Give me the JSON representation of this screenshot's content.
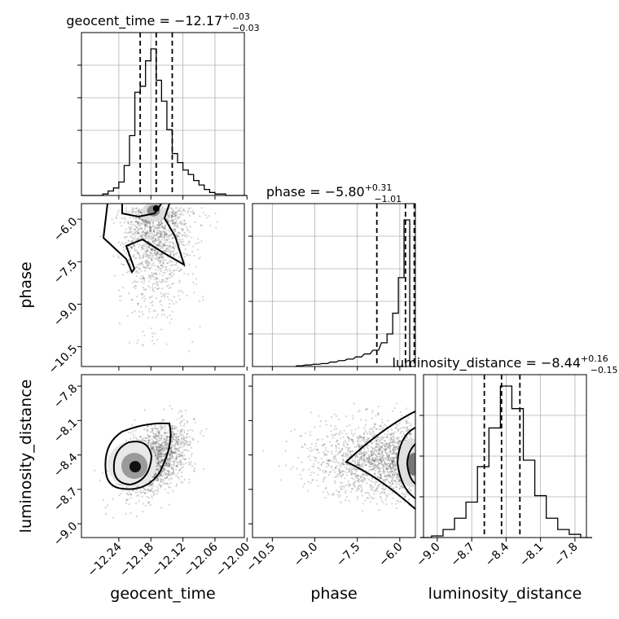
{
  "chart_data": [
    {
      "type": "histogram",
      "panel": "geocent_time marginal",
      "title": {
        "main": "geocent_time = −12.17",
        "sup": "+0.03",
        "sub": "−0.03"
      },
      "x": [
        -12.305,
        -12.295,
        -12.285,
        -12.275,
        -12.265,
        -12.255,
        -12.245,
        -12.235,
        -12.225,
        -12.215,
        -12.205,
        -12.195,
        -12.185,
        -12.175,
        -12.165,
        -12.155,
        -12.145,
        -12.135,
        -12.125,
        -12.115,
        -12.105,
        -12.095,
        -12.085,
        -12.075,
        -12.065,
        -12.055,
        -12.045,
        -12.035,
        -12.025,
        -12.015,
        -12.005
      ],
      "values": [
        0,
        0,
        0,
        0,
        0.01,
        0.03,
        0.05,
        0.09,
        0.2,
        0.4,
        0.69,
        0.73,
        0.9,
        0.98,
        0.77,
        0.63,
        0.44,
        0.28,
        0.22,
        0.17,
        0.14,
        0.1,
        0.07,
        0.04,
        0.02,
        0.01,
        0.01,
        0,
        0,
        0,
        0
      ],
      "quantiles": [
        -12.2,
        -12.17,
        -12.14
      ],
      "xlim": [
        -12.31,
        -12.0
      ],
      "grid": true
    },
    {
      "type": "histogram",
      "panel": "phase marginal",
      "title": {
        "main": "phase = −5.80",
        "sup": "+0.31",
        "sub": "−1.01"
      },
      "x": [
        -11.45,
        -11.35,
        -11.25,
        -11.15,
        -11.05,
        -10.95,
        -10.85,
        -10.75,
        -10.65,
        -10.55,
        -10.45,
        -10.35,
        -10.25,
        -10.15,
        -10.05,
        -9.95,
        -9.85,
        -9.75,
        -9.65,
        -9.55,
        -9.45,
        -9.35,
        -9.25,
        -9.15,
        -9.05,
        -8.95,
        -8.85,
        -8.75,
        -8.65,
        -8.55,
        -8.45,
        -8.35,
        -8.25,
        -8.15,
        -8.05,
        -7.95,
        -7.85,
        -7.75,
        -7.65,
        -7.55,
        -7.45,
        -7.35,
        -7.25,
        -7.15,
        -7.05,
        -6.95,
        -6.85,
        -6.75,
        -6.65,
        -6.55,
        -6.45,
        -6.35,
        -6.25,
        -6.15,
        -6.05,
        -5.95,
        -5.85,
        -5.75,
        -5.65,
        -5.55
      ],
      "values": [
        0,
        0,
        0,
        0,
        0,
        0,
        0,
        0,
        0,
        0,
        0,
        0,
        0,
        0,
        0,
        0,
        0,
        0,
        0,
        0,
        0,
        0,
        0,
        0,
        0,
        0,
        0,
        0,
        0,
        0,
        0,
        0,
        0,
        0,
        0,
        0,
        0,
        0,
        0,
        0,
        0,
        0,
        0,
        0,
        0,
        0,
        0,
        0,
        0,
        0,
        0,
        0,
        0,
        0,
        0,
        0,
        0,
        0,
        0,
        0
      ],
      "bins": [
        {
          "x": -9.55,
          "v": 0.005
        },
        {
          "x": -9.25,
          "v": 0.01
        },
        {
          "x": -8.95,
          "v": 0.015
        },
        {
          "x": -8.65,
          "v": 0.02
        },
        {
          "x": -8.35,
          "v": 0.03
        },
        {
          "x": -8.05,
          "v": 0.04
        },
        {
          "x": -7.75,
          "v": 0.05
        },
        {
          "x": -7.45,
          "v": 0.065
        },
        {
          "x": -7.15,
          "v": 0.085
        },
        {
          "x": -6.85,
          "v": 0.11
        },
        {
          "x": -6.55,
          "v": 0.16
        },
        {
          "x": -6.35,
          "v": 0.22
        },
        {
          "x": -6.15,
          "v": 0.36
        },
        {
          "x": -5.95,
          "v": 0.6
        },
        {
          "x": -5.75,
          "v": 0.99
        }
      ],
      "quantiles": [
        -6.81,
        -5.8,
        -5.49
      ],
      "xlim": [
        -11.2,
        -5.45
      ],
      "grid": true
    },
    {
      "type": "histogram",
      "panel": "luminosity_distance marginal",
      "title": {
        "main": "luminosity_distance = −8.44",
        "sup": "+0.16",
        "sub": "−0.15"
      },
      "bins": [
        {
          "x": -9.1,
          "v": 0
        },
        {
          "x": -9.0,
          "v": 0.01
        },
        {
          "x": -8.9,
          "v": 0.05
        },
        {
          "x": -8.8,
          "v": 0.12
        },
        {
          "x": -8.7,
          "v": 0.22
        },
        {
          "x": -8.6,
          "v": 0.44
        },
        {
          "x": -8.5,
          "v": 0.68
        },
        {
          "x": -8.4,
          "v": 0.94
        },
        {
          "x": -8.3,
          "v": 0.8
        },
        {
          "x": -8.2,
          "v": 0.48
        },
        {
          "x": -8.1,
          "v": 0.26
        },
        {
          "x": -8.0,
          "v": 0.12
        },
        {
          "x": -7.9,
          "v": 0.05
        },
        {
          "x": -7.8,
          "v": 0.02
        },
        {
          "x": -7.7,
          "v": 0
        }
      ],
      "quantiles": [
        -8.59,
        -8.44,
        -8.28
      ],
      "xlim": [
        -9.12,
        -7.7
      ],
      "grid": true
    }
  ],
  "axes": {
    "geocent_time": {
      "label": "geocent_time",
      "ticks": [
        "−12.24",
        "−12.18",
        "−12.12",
        "−12.06",
        "−12.00"
      ],
      "tick_values": [
        -12.24,
        -12.18,
        -12.12,
        -12.06,
        -12.0
      ]
    },
    "phase": {
      "label": "phase",
      "ticks": [
        "−10.5",
        "−9.0",
        "−7.5",
        "−6.0"
      ],
      "tick_values": [
        -10.5,
        -9.0,
        -7.5,
        -6.0
      ]
    },
    "luminosity_distance": {
      "label": "luminosity_distance",
      "ticks": [
        "−9.0",
        "−8.7",
        "−8.4",
        "−8.1",
        "−7.8"
      ],
      "tick_values": [
        -9.0,
        -8.7,
        -8.4,
        -8.1,
        -7.8
      ]
    }
  },
  "colors": {
    "ink": "#000000",
    "scatter": "#555555",
    "grid": "#b0b0b0"
  }
}
